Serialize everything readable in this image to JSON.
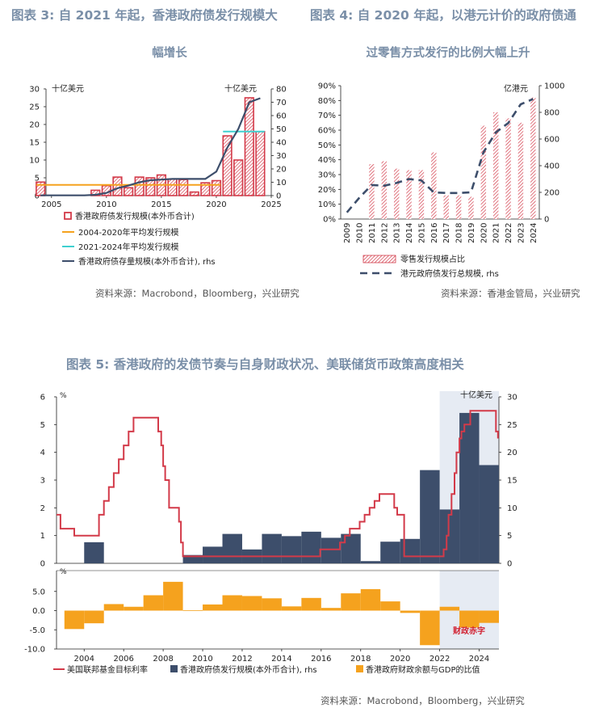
{
  "fig3": {
    "title_line1": "图表 3:  自 2021 年起，香港政府债发行规模大",
    "title_line2": "幅增长",
    "unit_left": "十亿美元",
    "unit_right": "十亿美元",
    "source": "资料来源：Macrobond，Bloomberg，兴业研究",
    "legend": {
      "issuance": "香港政府债发行规模(本外币合计)",
      "avg_2004_2020": "2004-2020年平均发行规模",
      "avg_2021_2024": "2021-2024年平均发行规模",
      "stock": "香港政府债存量规模(本外币合计), rhs"
    }
  },
  "fig4": {
    "title_line1": "图表 4:  自 2020 年起，以港元计价的政府债通",
    "title_line2": "过零售方式发行的比例大幅上升",
    "unit_right": "亿港元",
    "source": "资料来源：香港金管局，兴业研究",
    "legend": {
      "retail": "零售发行规模占比",
      "total": "港元政府债发行总规模, rhs"
    }
  },
  "fig5": {
    "title": "图表 5:  香港政府的发债节奏与自身财政状况、美联储货币政策高度相关",
    "unit_top_left": "%",
    "unit_top_right": "十亿美元",
    "unit_bottom_left": "%",
    "deficit_label": "财政赤字",
    "source": "资料来源：Macrobond，Bloomberg，兴业研究",
    "legend": {
      "fed": "美国联邦基金目标利率",
      "issuance": "香港政府债发行规模(本外币合计), rhs",
      "balance": "香港政府财政余额与GDP的比值"
    }
  },
  "chart_data": [
    {
      "type": "bar",
      "id": "fig3",
      "x": [
        2004,
        2005,
        2006,
        2007,
        2008,
        2009,
        2010,
        2011,
        2012,
        2013,
        2014,
        2015,
        2016,
        2017,
        2018,
        2019,
        2020,
        2021,
        2022,
        2023,
        2024
      ],
      "series": [
        {
          "name": "香港政府债发行规模(本外币合计)",
          "type": "bar",
          "axis": "left",
          "values": [
            3.8,
            0.0,
            0.0,
            0.0,
            0.0,
            1.5,
            2.8,
            5.2,
            2.2,
            5.2,
            5.0,
            5.8,
            4.6,
            4.5,
            1.0,
            3.6,
            4.2,
            16.8,
            10.0,
            27.5,
            18.0
          ]
        },
        {
          "name": "2004-2020年平均发行规模",
          "type": "line",
          "axis": "left",
          "x": [
            2004,
            2020
          ],
          "values": [
            3.0,
            3.0
          ]
        },
        {
          "name": "2021-2024年平均发行规模",
          "type": "line",
          "axis": "left",
          "x": [
            2021,
            2024
          ],
          "values": [
            18.0,
            18.0
          ]
        },
        {
          "name": "香港政府债存量规模(本外币合计), rhs",
          "type": "line",
          "axis": "right",
          "values": [
            0.2,
            0.2,
            0.2,
            0.2,
            0.2,
            0.6,
            2.0,
            5.5,
            7.5,
            10.0,
            11.5,
            12.0,
            12.5,
            12.5,
            12.5,
            12.5,
            18.0,
            36.0,
            50.0,
            70.0,
            73.0
          ]
        }
      ],
      "xticks": [
        2005,
        2010,
        2015,
        2020,
        2025
      ],
      "ylim_left": [
        0,
        30
      ],
      "yticks_left": [
        0,
        5,
        10,
        15,
        20,
        25,
        30
      ],
      "ylim_right": [
        0,
        80
      ],
      "yticks_right": [
        0,
        10,
        20,
        30,
        40,
        50,
        60,
        70,
        80
      ],
      "ylabel_left": "十亿美元",
      "ylabel_right": "十亿美元"
    },
    {
      "type": "bar",
      "id": "fig4",
      "categories": [
        "2009",
        "2010",
        "2011",
        "2012",
        "2013",
        "2014",
        "2015",
        "2016",
        "2017",
        "2018",
        "2019",
        "2020",
        "2021",
        "2022",
        "2023",
        "2024"
      ],
      "series": [
        {
          "name": "零售发行规模占比",
          "type": "bar",
          "axis": "left",
          "values": [
            0,
            0,
            0.37,
            0.39,
            0.34,
            0.33,
            0.33,
            0.45,
            0.16,
            0.16,
            0.15,
            0.63,
            0.72,
            0.68,
            0.65,
            0.82
          ]
        },
        {
          "name": "港元政府债发行总规模, rhs",
          "type": "line",
          "axis": "right",
          "values": [
            50,
            160,
            255,
            250,
            270,
            300,
            290,
            200,
            195,
            195,
            200,
            500,
            650,
            720,
            860,
            900
          ]
        }
      ],
      "ylim_left": [
        0,
        0.9
      ],
      "yticks_left": [
        "0%",
        "10%",
        "20%",
        "30%",
        "40%",
        "50%",
        "60%",
        "70%",
        "80%",
        "90%"
      ],
      "ylim_right": [
        0,
        1000
      ],
      "yticks_right": [
        0,
        200,
        400,
        600,
        800,
        1000
      ],
      "ylabel_right": "亿港元"
    },
    {
      "type": "bar",
      "id": "fig5_top",
      "x": [
        2003,
        2004,
        2005,
        2006,
        2007,
        2008,
        2009,
        2010,
        2011,
        2012,
        2013,
        2014,
        2015,
        2016,
        2017,
        2018,
        2019,
        2020,
        2021,
        2022,
        2023,
        2024
      ],
      "series": [
        {
          "name": "香港政府债发行规模(本外币合计), rhs",
          "type": "bar",
          "axis": "right",
          "values": [
            0,
            3.8,
            0,
            0,
            0,
            0,
            1.5,
            3.0,
            5.3,
            2.5,
            5.3,
            4.9,
            5.7,
            4.6,
            5.3,
            0.4,
            3.9,
            4.4,
            16.8,
            9.7,
            27.1,
            17.7
          ]
        },
        {
          "name": "美国联邦基金目标利率",
          "type": "line",
          "axis": "left",
          "x": [
            2002.6,
            2002.8,
            2003.0,
            2003.5,
            2004.5,
            2004.75,
            2005.0,
            2005.25,
            2005.5,
            2005.75,
            2006.0,
            2006.25,
            2006.5,
            2007.6,
            2007.75,
            2007.9,
            2008.0,
            2008.1,
            2008.3,
            2008.8,
            2008.9,
            2009.0,
            2015.95,
            2016.95,
            2017.2,
            2017.45,
            2017.95,
            2018.2,
            2018.45,
            2018.7,
            2018.95,
            2019.5,
            2019.7,
            2019.85,
            2020.2,
            2022.2,
            2022.35,
            2022.45,
            2022.6,
            2022.75,
            2022.85,
            2023.0,
            2023.1,
            2023.25,
            2023.55,
            2024.7,
            2024.85,
            2024.95
          ],
          "values": [
            1.75,
            1.25,
            1.25,
            1.0,
            1.0,
            1.75,
            2.25,
            2.75,
            3.25,
            3.75,
            4.25,
            4.75,
            5.25,
            5.25,
            4.75,
            4.25,
            3.5,
            3.0,
            2.0,
            1.5,
            0.75,
            0.25,
            0.5,
            0.75,
            1.0,
            1.25,
            1.5,
            1.75,
            2.0,
            2.25,
            2.5,
            2.5,
            2.0,
            1.75,
            0.25,
            0.5,
            1.0,
            1.75,
            2.5,
            3.25,
            4.0,
            4.5,
            4.75,
            5.0,
            5.5,
            5.5,
            4.75,
            4.5
          ]
        }
      ],
      "ylim_left": [
        0,
        6
      ],
      "yticks_left": [
        0,
        1,
        2,
        3,
        4,
        5,
        6
      ],
      "ylim_right": [
        0,
        30
      ],
      "yticks_right": [
        0,
        5,
        10,
        15,
        20,
        25,
        30
      ],
      "ylabel_left": "%",
      "ylabel_right": "十亿美元"
    },
    {
      "type": "bar",
      "id": "fig5_bottom",
      "x": [
        2003,
        2004,
        2005,
        2006,
        2007,
        2008,
        2009,
        2010,
        2011,
        2012,
        2013,
        2014,
        2015,
        2016,
        2017,
        2018,
        2019,
        2020,
        2021,
        2022,
        2023,
        2024
      ],
      "series": [
        {
          "name": "香港政府财政余额与GDP的比值",
          "type": "bar",
          "axis": "left",
          "values": [
            -4.8,
            -3.3,
            1.7,
            1.0,
            4.0,
            7.5,
            0.1,
            1.6,
            4.0,
            3.8,
            3.2,
            1.1,
            3.3,
            0.7,
            4.5,
            5.6,
            2.4,
            -0.6,
            -9.0,
            1.0,
            -4.4,
            -3.2
          ]
        }
      ],
      "ylim": [
        -10,
        10
      ],
      "yticks": [
        "-10.0",
        "-5.0",
        "0.0",
        "5.0"
      ],
      "xticks": [
        "2004",
        "2006",
        "2008",
        "2010",
        "2012",
        "2014",
        "2016",
        "2018",
        "2020",
        "2022",
        "2024"
      ],
      "ylabel": "%",
      "annotation": "财政赤字"
    }
  ]
}
